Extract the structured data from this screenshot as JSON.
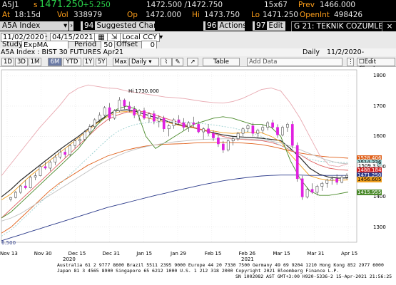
{
  "header": {
    "ticker": "A5J1",
    "last_prefix": "s",
    "last": "1471.250",
    "change": "+5.250",
    "bid_ask": "1472.500 /1472.750",
    "size": "15x67",
    "prev_label": "Prev",
    "prev": "1466.000",
    "time_label": "At",
    "time": "18:15d",
    "vol_label": "Vol",
    "vol": "338979",
    "open_label": "Op",
    "open": "1472.000",
    "high_label": "Hi",
    "high": "1473.750",
    "low_label": "Lo",
    "low": "1471.250",
    "oi_label": "OpenInt",
    "oi": "498426"
  },
  "tabs": {
    "security": "A5A Index",
    "suggested_num": "94",
    "suggested": "Suggested Charts",
    "actions_num": "96",
    "actions": "Actions",
    "edit_num": "97",
    "edit": "Edit",
    "window_title": "G 21: TEKNIK COZUMLEM..."
  },
  "controls": {
    "start_date": "11/02/2020",
    "end_date": "04/15/2021",
    "currency": "Local CCY",
    "study_label": "Study",
    "study": "ExpMA",
    "period_label": "Period",
    "period": "50",
    "offset_label": "Offset",
    "offset": "0"
  },
  "status": {
    "description": "A5A Index : BIST 30 FUTURES   Apr21",
    "frequency": "Daily",
    "range": "11/2/2020-4/15/2021"
  },
  "toolbar": {
    "ranges": [
      "1D",
      "3D",
      "1M",
      "6M",
      "YTD",
      "1Y",
      "5Y",
      "Max"
    ],
    "active_range": "6M",
    "period_select": "Daily",
    "table": "Table",
    "add_data": "Add Data",
    "edit_chart": "Edit Chart"
  },
  "chart_data": {
    "type": "candlestick",
    "ylim": [
      1250,
      1820
    ],
    "ytick_labels": [
      "1800",
      "1700",
      "1600",
      "1500",
      "1400",
      "1300"
    ],
    "xtick_labels": [
      "Nov 13",
      "Nov 30",
      "Dec 15",
      "Dec 31",
      "Jan 15",
      "Jan 29",
      "Feb 15",
      "Feb 26",
      "Mar 15",
      "Mar 31",
      "Apr 15"
    ],
    "year_labels": [
      "2020",
      "2021"
    ],
    "annotations": [
      "Hi 1730.000",
      "6.500"
    ],
    "price_tags": [
      {
        "value": "1528.406",
        "color": "#e0601a"
      },
      {
        "value": "1514.336",
        "color": "#9ad0d0"
      },
      {
        "value": "1509.3",
        "color": "#ffffff"
      },
      {
        "value": "1488.184",
        "color": "#d02020"
      },
      {
        "value": "1471.250",
        "color": "#2b3a8a"
      },
      {
        "value": "1456.605",
        "color": "#f0a020"
      },
      {
        "value": "1415.955",
        "color": "#4a8a2a"
      }
    ],
    "candles": [
      [
        1392,
        1400,
        1385,
        1398
      ],
      [
        1398,
        1420,
        1395,
        1415
      ],
      [
        1415,
        1440,
        1410,
        1436
      ],
      [
        1436,
        1455,
        1425,
        1430
      ],
      [
        1430,
        1470,
        1428,
        1465
      ],
      [
        1465,
        1480,
        1455,
        1470
      ],
      [
        1470,
        1505,
        1468,
        1500
      ],
      [
        1500,
        1515,
        1490,
        1495
      ],
      [
        1495,
        1520,
        1485,
        1515
      ],
      [
        1515,
        1540,
        1505,
        1532
      ],
      [
        1532,
        1555,
        1525,
        1548
      ],
      [
        1548,
        1560,
        1530,
        1540
      ],
      [
        1540,
        1575,
        1535,
        1570
      ],
      [
        1570,
        1590,
        1560,
        1585
      ],
      [
        1585,
        1600,
        1570,
        1590
      ],
      [
        1590,
        1620,
        1585,
        1615
      ],
      [
        1615,
        1640,
        1605,
        1632
      ],
      [
        1632,
        1660,
        1625,
        1655
      ],
      [
        1655,
        1680,
        1645,
        1670
      ],
      [
        1670,
        1700,
        1660,
        1695
      ],
      [
        1695,
        1710,
        1650,
        1660
      ],
      [
        1660,
        1690,
        1655,
        1685
      ],
      [
        1685,
        1730,
        1680,
        1720
      ],
      [
        1720,
        1725,
        1690,
        1700
      ],
      [
        1700,
        1715,
        1680,
        1690
      ],
      [
        1690,
        1700,
        1660,
        1670
      ],
      [
        1670,
        1690,
        1650,
        1685
      ],
      [
        1685,
        1695,
        1655,
        1660
      ],
      [
        1660,
        1680,
        1645,
        1675
      ],
      [
        1675,
        1685,
        1640,
        1650
      ],
      [
        1650,
        1670,
        1630,
        1660
      ],
      [
        1660,
        1668,
        1615,
        1625
      ],
      [
        1625,
        1640,
        1600,
        1635
      ],
      [
        1635,
        1660,
        1625,
        1655
      ],
      [
        1655,
        1670,
        1640,
        1645
      ],
      [
        1645,
        1660,
        1620,
        1630
      ],
      [
        1630,
        1650,
        1615,
        1645
      ],
      [
        1645,
        1665,
        1630,
        1640
      ],
      [
        1640,
        1650,
        1610,
        1615
      ],
      [
        1615,
        1630,
        1590,
        1625
      ],
      [
        1625,
        1640,
        1600,
        1610
      ],
      [
        1610,
        1620,
        1585,
        1595
      ],
      [
        1595,
        1605,
        1565,
        1575
      ],
      [
        1575,
        1585,
        1545,
        1555
      ],
      [
        1555,
        1590,
        1550,
        1585
      ],
      [
        1585,
        1600,
        1570,
        1592
      ],
      [
        1592,
        1615,
        1585,
        1610
      ],
      [
        1610,
        1630,
        1600,
        1625
      ],
      [
        1625,
        1640,
        1615,
        1635
      ],
      [
        1635,
        1645,
        1600,
        1610
      ],
      [
        1610,
        1625,
        1595,
        1620
      ],
      [
        1620,
        1640,
        1610,
        1630
      ],
      [
        1630,
        1650,
        1620,
        1645
      ],
      [
        1645,
        1655,
        1625,
        1630
      ],
      [
        1630,
        1640,
        1595,
        1605
      ],
      [
        1605,
        1635,
        1600,
        1630
      ],
      [
        1630,
        1645,
        1615,
        1640
      ],
      [
        1640,
        1650,
        1560,
        1570
      ],
      [
        1570,
        1580,
        1450,
        1460
      ],
      [
        1460,
        1470,
        1390,
        1400
      ],
      [
        1400,
        1430,
        1395,
        1425
      ],
      [
        1425,
        1445,
        1410,
        1415
      ],
      [
        1415,
        1440,
        1405,
        1435
      ],
      [
        1435,
        1450,
        1420,
        1445
      ],
      [
        1445,
        1460,
        1430,
        1455
      ],
      [
        1455,
        1468,
        1440,
        1460
      ],
      [
        1460,
        1475,
        1440,
        1448
      ],
      [
        1448,
        1470,
        1445,
        1465
      ],
      [
        1465,
        1478,
        1458,
        1471
      ]
    ],
    "series": [
      {
        "color": "#2a2a2a",
        "values": [
          1400,
          1425,
          1455,
          1480,
          1505,
          1530,
          1555,
          1578,
          1600,
          1625,
          1648,
          1670,
          1685,
          1688,
          1682,
          1672,
          1662,
          1652,
          1642,
          1635,
          1628,
          1620,
          1612,
          1605,
          1600,
          1598,
          1596,
          1594,
          1590,
          1586,
          1560,
          1530,
          1495,
          1475,
          1465,
          1462,
          1463
        ]
      },
      {
        "color": "#f0a020",
        "values": [
          1390,
          1410,
          1440,
          1470,
          1495,
          1520,
          1545,
          1570,
          1595,
          1620,
          1645,
          1665,
          1680,
          1682,
          1675,
          1662,
          1655,
          1648,
          1640,
          1632,
          1628,
          1622,
          1618,
          1612,
          1610,
          1612,
          1614,
          1612,
          1600,
          1582,
          1540,
          1505,
          1470,
          1460,
          1455,
          1455,
          1456
        ]
      },
      {
        "color": "#e0601a",
        "values": [
          1280,
          1300,
          1330,
          1360,
          1390,
          1420,
          1445,
          1465,
          1485,
          1505,
          1520,
          1535,
          1545,
          1555,
          1562,
          1568,
          1572,
          1574,
          1575,
          1576,
          1578,
          1579,
          1580,
          1580,
          1579,
          1578,
          1576,
          1573,
          1567,
          1560,
          1552,
          1545,
          1540,
          1535,
          1532,
          1530,
          1528
        ]
      },
      {
        "color": "#2b3a8a",
        "values": [
          1255,
          1265,
          1275,
          1285,
          1295,
          1305,
          1315,
          1325,
          1335,
          1345,
          1355,
          1365,
          1373,
          1381,
          1389,
          1397,
          1405,
          1412,
          1420,
          1427,
          1434,
          1441,
          1447,
          1453,
          1458,
          1462,
          1466,
          1469,
          1471,
          1472,
          1472,
          1472,
          1471,
          1471,
          1471,
          1471,
          1471
        ]
      },
      {
        "color": "#e06060",
        "values": [
          1330,
          1360,
          1390,
          1420,
          1450,
          1480,
          1510,
          1540,
          1570,
          1600,
          1630,
          1655,
          1670,
          1680,
          1685,
          1680,
          1670,
          1660,
          1650,
          1640,
          1630,
          1620,
          1610,
          1600,
          1592,
          1590,
          1588,
          1586,
          1580,
          1570,
          1555,
          1540,
          1520,
          1505,
          1495,
          1490,
          1488
        ]
      },
      {
        "color": "#9ad0d0",
        "values": [
          1270,
          1290,
          1320,
          1350,
          1380,
          1410,
          1440,
          1470,
          1500,
          1530,
          1560,
          1590,
          1615,
          1630,
          1640,
          1645,
          1647,
          1648,
          1648,
          1647,
          1645,
          1642,
          1638,
          1633,
          1628,
          1620,
          1612,
          1600,
          1585,
          1570,
          1555,
          1540,
          1525,
          1518,
          1515,
          1514,
          1514
        ]
      },
      {
        "color": "#4a8a2a",
        "values": [
          1330,
          1350,
          1380,
          1410,
          1440,
          1470,
          1500,
          1530,
          1560,
          1600,
          1640,
          1670,
          1690,
          1700,
          1690,
          1600,
          1560,
          1580,
          1600,
          1620,
          1640,
          1650,
          1660,
          1665,
          1660,
          1650,
          1640,
          1640,
          1630,
          1600,
          1520,
          1460,
          1420,
          1405,
          1405,
          1410,
          1416
        ]
      },
      {
        "color": "#e8a8b0",
        "values": [
          1470,
          1510,
          1550,
          1590,
          1630,
          1665,
          1700,
          1740,
          1760,
          1770,
          1765,
          1760,
          1758,
          1750,
          1745,
          1740,
          1735,
          1730,
          1728,
          1725,
          1720,
          1715,
          1712,
          1710,
          1715,
          1725,
          1740,
          1755,
          1760,
          1750,
          1710,
          1660,
          1600,
          1540,
          1505,
          1500,
          1510
        ]
      },
      {
        "color": "#c0c0c0",
        "values": [
          1320,
          1330,
          1345,
          1365,
          1385,
          1405,
          1425,
          1445,
          1465,
          1485,
          1505,
          1520,
          1535,
          1548,
          1558,
          1566,
          1572,
          1578,
          1582,
          1585,
          1588,
          1590,
          1591,
          1592,
          1592,
          1592,
          1590,
          1588,
          1584,
          1578,
          1568,
          1556,
          1543,
          1530,
          1520,
          1512,
          1509
        ]
      }
    ]
  },
  "footer": {
    "line1": "Australia 61 2 9777 8600  Brazil 5511 2395 9000  Europe 44 20 7330 7500  Germany 49 69 9204 1210  Hong Kong 852 2977 6000",
    "line2": "Japan 81 3 4565 8900        Singapore 65 6212 1000        U.S. 1 212 318 2000              Copyright 2021 Bloomberg Finance L.P.",
    "line3": "SN 1002082 AST  GMT+3:00 H920-5336-2 15-Apr-2021 21:56:25"
  },
  "colors": {
    "accent": "#ff9f1a",
    "positive": "#2ad24a",
    "down_candle": "#e020e0",
    "up_candle": "#ffffff"
  }
}
